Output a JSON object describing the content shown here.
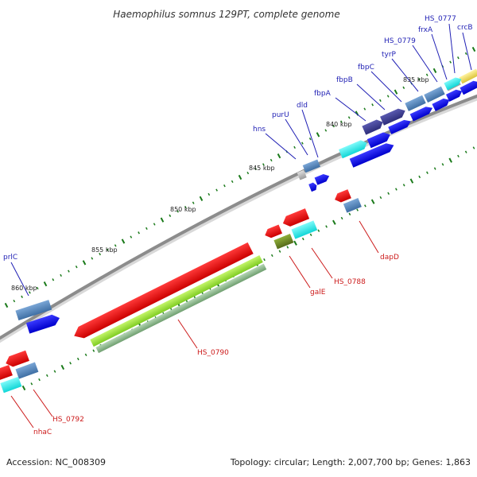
{
  "title": "Haemophilus somnus 129PT, complete genome",
  "footer": {
    "accession": "Accession: NC_008309",
    "summary": "Topology: circular; Length: 2,007,700 bp; Genes: 1,863"
  },
  "colors": {
    "backbone": "#8c8c8c",
    "forward_strand_labels": "#1f1fb4",
    "reverse_strand_labels": "#cc1a1a",
    "tick": "#1a7a1a",
    "gene_blue": "#0000ee",
    "gene_cyan": "#22eeee",
    "gene_steel": "#4a7fb5",
    "gene_navy": "#3a3a90",
    "gene_grey": "#b8b8b8",
    "gene_red": "#ee0000",
    "gene_lime": "#99e633",
    "gene_olive": "#6b8e23",
    "gene_sage": "#8fbc8f",
    "gene_yellow": "#f0e060"
  },
  "ticks": [
    {
      "label": "835 kbp"
    },
    {
      "label": "840 kbp"
    },
    {
      "label": "845 kbp"
    },
    {
      "label": "850 kbp"
    },
    {
      "label": "855 kbp"
    },
    {
      "label": "860 kbp"
    }
  ],
  "forward_labels": [
    "crcB",
    "HS_0777",
    "frxA",
    "HS_0779",
    "tyrP",
    "fbpC",
    "fbpB",
    "fbpA",
    "dld",
    "purU",
    "hns",
    "prlC"
  ],
  "reverse_labels": [
    "dapD",
    "HS_0788",
    "galE",
    "HS_0790",
    "HS_0792",
    "nhaC"
  ]
}
